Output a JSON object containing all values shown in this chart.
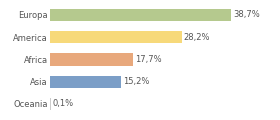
{
  "categories": [
    "Europa",
    "America",
    "Africa",
    "Asia",
    "Oceania"
  ],
  "values": [
    38.7,
    28.2,
    17.7,
    15.2,
    0.1
  ],
  "labels": [
    "38,7%",
    "28,2%",
    "17,7%",
    "15,2%",
    "0,1%"
  ],
  "bar_colors": [
    "#b5c98e",
    "#f7d97a",
    "#e8a87c",
    "#7b9ec7",
    "#cccccc"
  ],
  "background_color": "#ffffff",
  "xlim": [
    0,
    48
  ],
  "bar_height": 0.55,
  "label_fontsize": 6.0,
  "tick_fontsize": 6.0
}
